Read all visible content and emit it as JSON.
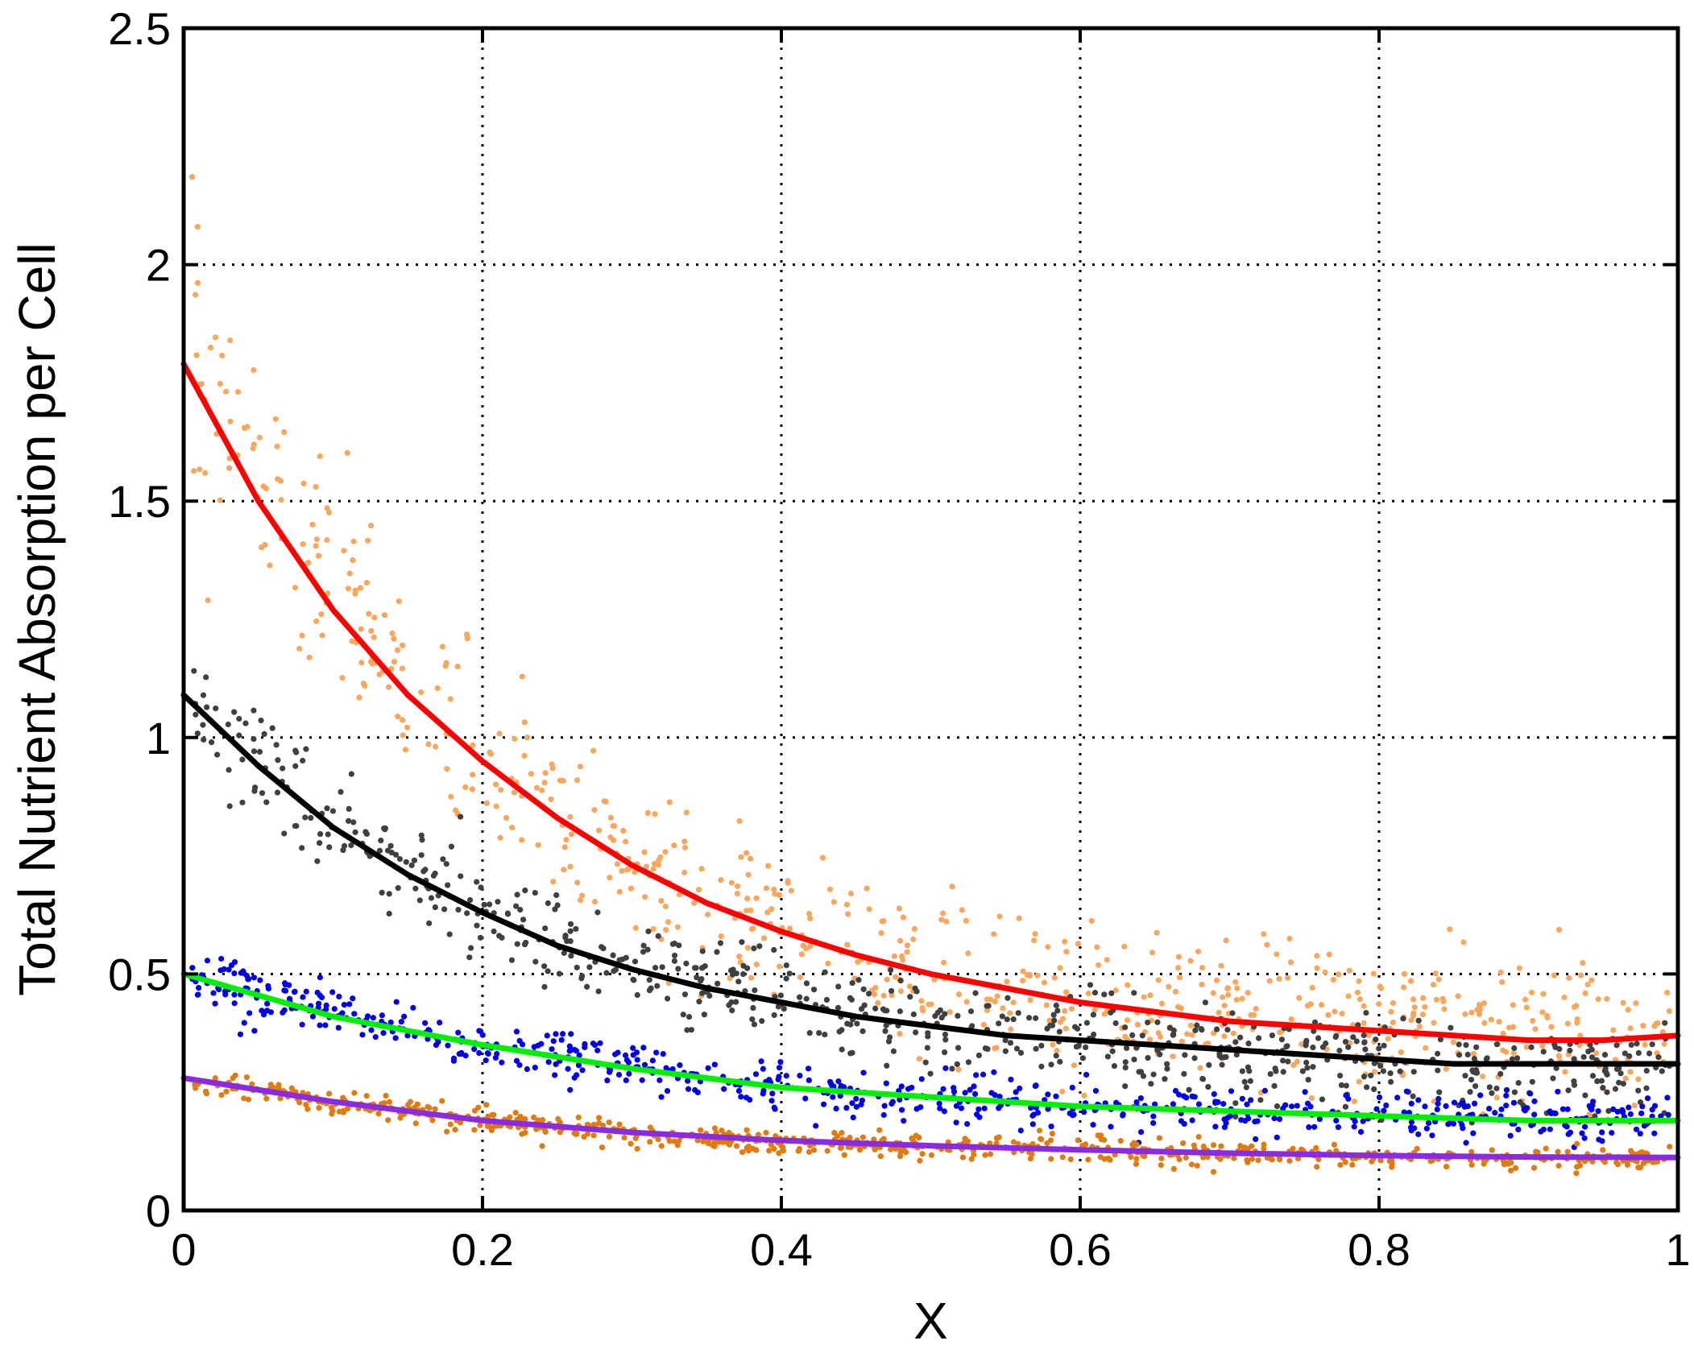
{
  "chart_data": {
    "type": "scatter",
    "title": "",
    "xlabel": "X",
    "ylabel": "Total Nutrient Absorption per Cell",
    "xlim": [
      0,
      1
    ],
    "ylim": [
      0,
      2.5
    ],
    "x_ticks": [
      "0",
      "0.2",
      "0.4",
      "0.6",
      "0.8",
      "1"
    ],
    "y_ticks": [
      "0",
      "0.5",
      "1",
      "1.5",
      "2",
      "2.5"
    ],
    "x_tick_values": [
      0,
      0.2,
      0.4,
      0.6,
      0.8,
      1
    ],
    "y_tick_values": [
      0,
      0.5,
      1,
      1.5,
      2,
      2.5
    ],
    "grid": true,
    "legend": "none",
    "scatter_groups": [
      {
        "color": "#f9a75c",
        "approx_points": 700,
        "trend": [
          [
            0.0,
            1.85
          ],
          [
            0.05,
            1.55
          ],
          [
            0.1,
            1.3
          ],
          [
            0.15,
            1.1
          ],
          [
            0.2,
            0.95
          ],
          [
            0.25,
            0.82
          ],
          [
            0.3,
            0.72
          ],
          [
            0.35,
            0.65
          ],
          [
            0.4,
            0.6
          ],
          [
            0.45,
            0.55
          ],
          [
            0.5,
            0.5
          ],
          [
            0.6,
            0.46
          ],
          [
            0.7,
            0.43
          ],
          [
            0.8,
            0.4
          ],
          [
            0.9,
            0.39
          ],
          [
            1.0,
            0.38
          ]
        ],
        "spread": 0.09
      },
      {
        "color": "#404040",
        "approx_points": 700,
        "trend": [
          [
            0.0,
            1.1
          ],
          [
            0.05,
            0.95
          ],
          [
            0.1,
            0.82
          ],
          [
            0.15,
            0.72
          ],
          [
            0.2,
            0.63
          ],
          [
            0.25,
            0.56
          ],
          [
            0.3,
            0.51
          ],
          [
            0.35,
            0.47
          ],
          [
            0.4,
            0.44
          ],
          [
            0.45,
            0.41
          ],
          [
            0.5,
            0.39
          ],
          [
            0.6,
            0.36
          ],
          [
            0.7,
            0.33
          ],
          [
            0.8,
            0.31
          ],
          [
            0.9,
            0.3
          ],
          [
            1.0,
            0.3
          ]
        ],
        "spread": 0.06
      },
      {
        "color": "#0000ee",
        "approx_points": 650,
        "trend": [
          [
            0.0,
            0.5
          ],
          [
            0.1,
            0.42
          ],
          [
            0.2,
            0.35
          ],
          [
            0.3,
            0.3
          ],
          [
            0.4,
            0.26
          ],
          [
            0.5,
            0.24
          ],
          [
            0.6,
            0.22
          ],
          [
            0.7,
            0.21
          ],
          [
            0.8,
            0.2
          ],
          [
            0.9,
            0.19
          ],
          [
            1.0,
            0.19
          ]
        ],
        "spread": 0.035
      },
      {
        "color": "#e07b10",
        "approx_points": 700,
        "trend": [
          [
            0.0,
            0.28
          ],
          [
            0.1,
            0.23
          ],
          [
            0.2,
            0.19
          ],
          [
            0.3,
            0.16
          ],
          [
            0.4,
            0.145
          ],
          [
            0.5,
            0.135
          ],
          [
            0.6,
            0.13
          ],
          [
            0.7,
            0.12
          ],
          [
            0.8,
            0.115
          ],
          [
            0.9,
            0.11
          ],
          [
            1.0,
            0.11
          ]
        ],
        "spread": 0.018
      }
    ],
    "series": [
      {
        "color": "#ff0000",
        "x": [
          0.0,
          0.05,
          0.1,
          0.15,
          0.2,
          0.25,
          0.3,
          0.35,
          0.4,
          0.45,
          0.5,
          0.55,
          0.6,
          0.65,
          0.7,
          0.75,
          0.8,
          0.85,
          0.9,
          0.95,
          1.0
        ],
        "values": [
          1.79,
          1.5,
          1.27,
          1.09,
          0.95,
          0.83,
          0.73,
          0.65,
          0.59,
          0.54,
          0.5,
          0.47,
          0.44,
          0.42,
          0.4,
          0.39,
          0.38,
          0.37,
          0.36,
          0.36,
          0.37
        ]
      },
      {
        "color": "#000000",
        "x": [
          0.0,
          0.05,
          0.1,
          0.15,
          0.2,
          0.25,
          0.3,
          0.35,
          0.4,
          0.45,
          0.5,
          0.55,
          0.6,
          0.65,
          0.7,
          0.75,
          0.8,
          0.85,
          0.9,
          0.95,
          1.0
        ],
        "values": [
          1.09,
          0.94,
          0.81,
          0.71,
          0.63,
          0.56,
          0.51,
          0.47,
          0.44,
          0.41,
          0.39,
          0.37,
          0.36,
          0.35,
          0.34,
          0.33,
          0.32,
          0.31,
          0.31,
          0.31,
          0.31
        ]
      },
      {
        "color": "#00ee00",
        "x": [
          0.0,
          0.1,
          0.2,
          0.3,
          0.4,
          0.5,
          0.6,
          0.7,
          0.8,
          0.9,
          1.0
        ],
        "values": [
          0.5,
          0.41,
          0.35,
          0.3,
          0.26,
          0.24,
          0.22,
          0.21,
          0.2,
          0.19,
          0.19
        ]
      },
      {
        "color": "#8a2be2",
        "x": [
          0.0,
          0.1,
          0.2,
          0.3,
          0.4,
          0.5,
          0.6,
          0.7,
          0.8,
          0.9,
          1.0
        ],
        "values": [
          0.28,
          0.23,
          0.19,
          0.165,
          0.148,
          0.137,
          0.128,
          0.121,
          0.116,
          0.113,
          0.112
        ]
      }
    ]
  }
}
